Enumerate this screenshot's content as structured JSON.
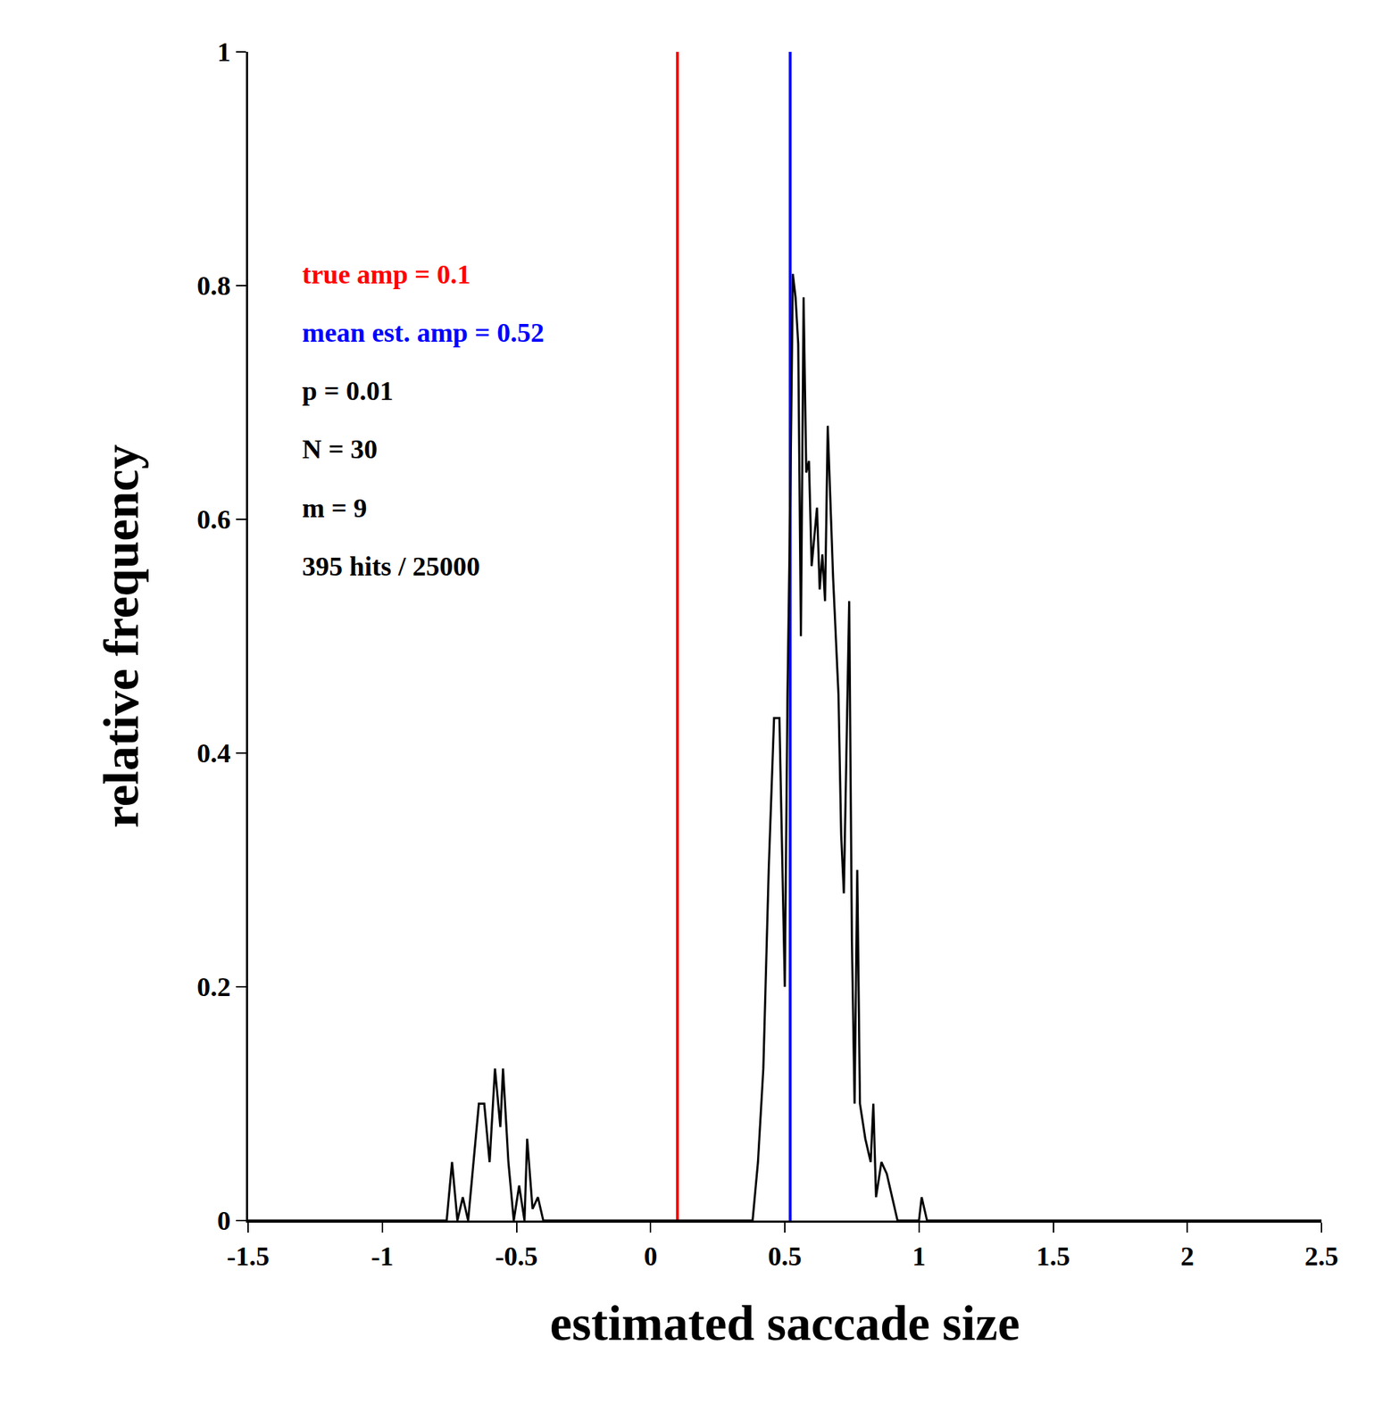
{
  "chart_data": {
    "type": "line",
    "x_label": "estimated saccade size",
    "y_label": "relative frequency",
    "xlim": [
      -1.5,
      2.5
    ],
    "xticks": [
      -1.5,
      -1,
      -0.5,
      0,
      0.5,
      1,
      1.5,
      2,
      2.5
    ],
    "ylim": [
      0,
      1
    ],
    "yticks": [
      0,
      0.2,
      0.4,
      0.6,
      0.8,
      1
    ],
    "grid": false,
    "color": "#000000",
    "x": [
      -1.5,
      -0.76,
      -0.74,
      -0.72,
      -0.7,
      -0.68,
      -0.66,
      -0.64,
      -0.62,
      -0.6,
      -0.58,
      -0.56,
      -0.55,
      -0.53,
      -0.51,
      -0.49,
      -0.47,
      -0.46,
      -0.44,
      -0.42,
      -0.4,
      0.38,
      0.4,
      0.42,
      0.44,
      0.46,
      0.48,
      0.49,
      0.5,
      0.51,
      0.52,
      0.53,
      0.54,
      0.55,
      0.56,
      0.57,
      0.58,
      0.59,
      0.6,
      0.62,
      0.63,
      0.64,
      0.65,
      0.66,
      0.67,
      0.68,
      0.7,
      0.71,
      0.72,
      0.74,
      0.75,
      0.76,
      0.77,
      0.78,
      0.8,
      0.82,
      0.83,
      0.84,
      0.86,
      0.88,
      0.9,
      0.92,
      1.0,
      1.01,
      1.03,
      1.05,
      2.5
    ],
    "values": [
      0,
      0,
      0.05,
      0,
      0.02,
      0,
      0.05,
      0.1,
      0.1,
      0.05,
      0.13,
      0.08,
      0.13,
      0.05,
      0,
      0.03,
      0,
      0.07,
      0.01,
      0.02,
      0,
      0,
      0.05,
      0.13,
      0.3,
      0.43,
      0.43,
      0.32,
      0.2,
      0.45,
      0.61,
      0.81,
      0.79,
      0.75,
      0.5,
      0.79,
      0.64,
      0.65,
      0.56,
      0.61,
      0.54,
      0.57,
      0.53,
      0.68,
      0.62,
      0.55,
      0.45,
      0.33,
      0.28,
      0.53,
      0.24,
      0.1,
      0.3,
      0.1,
      0.07,
      0.05,
      0.1,
      0.02,
      0.05,
      0.04,
      0.02,
      0,
      0,
      0.02,
      0,
      0,
      0
    ],
    "reference_lines": [
      {
        "label": "true amp = 0.1",
        "x": 0.1,
        "color": "#ff0000"
      },
      {
        "label": "mean est. amp = 0.52",
        "x": 0.52,
        "color": "#0000ff"
      }
    ],
    "annotations": [
      "p = 0.01",
      "N = 30",
      "m = 9",
      "395 hits / 25000"
    ]
  }
}
